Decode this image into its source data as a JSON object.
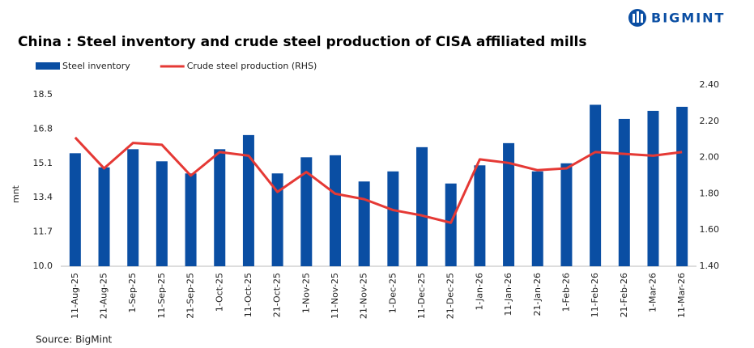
{
  "logo": "BIGMINT",
  "source": "Source: BigMint",
  "chart_data": {
    "type": "bar-line",
    "title": "China : Steel inventory and crude steel production of CISA affiliated mills",
    "ylabel": "mnt",
    "categories": [
      "11-Aug-25",
      "21-Aug-25",
      "1-Sep-25",
      "11-Sep-25",
      "21-Sep-25",
      "1-Oct-25",
      "11-Oct-25",
      "21-Oct-25",
      "1-Nov-25",
      "11-Nov-25",
      "21-Nov-25",
      "1-Dec-25",
      "11-Dec-25",
      "21-Dec-25",
      "1-Jan-26",
      "11-Jan-26",
      "21-Jan-26",
      "1-Feb-26",
      "11-Feb-26",
      "21-Feb-26",
      "1-Mar-26",
      "11-Mar-26"
    ],
    "series": [
      {
        "name": "Steel inventory",
        "type": "bar",
        "color": "#0a4ea3",
        "values": [
          15.6,
          14.9,
          15.8,
          15.2,
          14.6,
          15.8,
          16.5,
          14.6,
          15.4,
          15.5,
          14.2,
          14.7,
          15.9,
          14.1,
          15.0,
          16.1,
          14.7,
          15.1,
          18.0,
          17.3,
          17.7,
          17.9
        ]
      },
      {
        "name": "Crude steel production (RHS)",
        "type": "line",
        "axis": "y2",
        "color": "#e53935",
        "values": [
          2.11,
          1.94,
          2.08,
          2.07,
          1.9,
          2.03,
          2.01,
          1.81,
          1.92,
          1.8,
          1.77,
          1.71,
          1.68,
          1.64,
          1.99,
          1.97,
          1.93,
          1.94,
          2.03,
          2.02,
          2.01,
          2.03
        ]
      }
    ],
    "ylim": [
      10,
      18.5
    ],
    "yticks": [
      {
        "value": 10,
        "label": "10.0"
      },
      11.7,
      13.4,
      15.1,
      16.8,
      18.5
    ],
    "y2lim": [
      1.4,
      2.4
    ],
    "y2ticks": [
      {
        "value": 1.4,
        "label": "1.40"
      },
      {
        "value": 1.6,
        "label": "1.60"
      },
      {
        "value": 1.8,
        "label": "1.80"
      },
      {
        "value": 2.0,
        "label": "2.00"
      },
      {
        "value": 2.2,
        "label": "2.20"
      },
      {
        "value": 2.4,
        "label": "2.40"
      }
    ]
  }
}
